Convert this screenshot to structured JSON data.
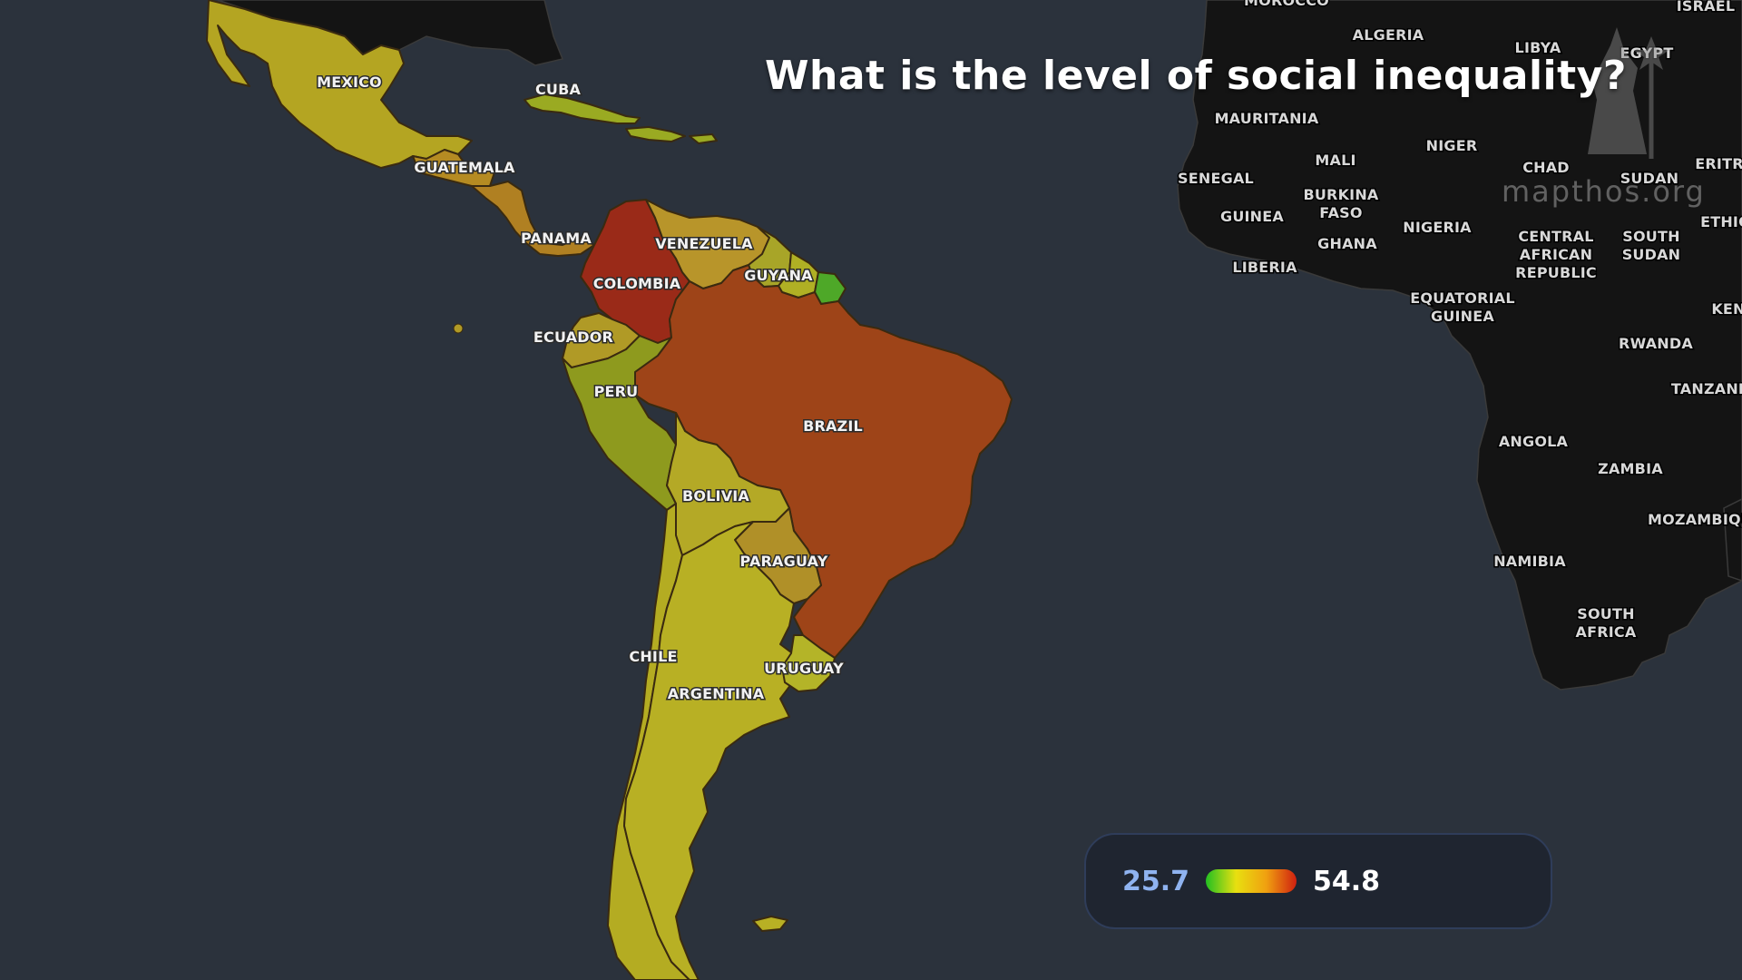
{
  "title": "What is the level of social inequality?",
  "watermark": "mapthos.org",
  "legend": {
    "min": "25.7",
    "max": "54.8"
  },
  "colors": {
    "ocean": "#2b323c",
    "mexico": "#b4a522",
    "guatemala": "#b58b22",
    "central_america": "#b08022",
    "cuba": "#9aaa22",
    "colombia": "#9a2a18",
    "venezuela": "#b8952a",
    "guyana": "#a8a528",
    "suriname": "#b0b024",
    "french_guiana": "#4ea828",
    "ecuador": "#b09a26",
    "peru": "#8e9a1e",
    "brazil": "#9e4418",
    "bolivia": "#b4a926",
    "paraguay": "#b09028",
    "chile": "#b4ac22",
    "argentina": "#b8b024",
    "uruguay": "#b4b428",
    "africa": "#141414"
  },
  "labels": {
    "americas": [
      "MEXICO",
      "CUBA",
      "GUATEMALA",
      "PANAMA",
      "VENEZUELA",
      "COLOMBIA",
      "GUYANA",
      "ECUADOR",
      "PERU",
      "BRAZIL",
      "BOLIVIA",
      "PARAGUAY",
      "CHILE",
      "URUGUAY",
      "ARGENTINA"
    ],
    "africa": [
      "MOROCCO",
      "ALGERIA",
      "LIBYA",
      "EGYPT",
      "ISRAEL",
      "MAURITANIA",
      "MALI",
      "NIGER",
      "CHAD",
      "SUDAN",
      "ERITR",
      "SENEGAL",
      "BURKINA",
      "FASO",
      "GUINEA",
      "GHANA",
      "NIGERIA",
      "CENTRAL",
      "AFRICAN",
      "REPUBLIC",
      "SOUTH",
      "SUDAN",
      "ETHIO",
      "LIBERIA",
      "EQUATORIAL",
      "GUINEA",
      "KEN",
      "RWANDA",
      "TANZANI",
      "ANGOLA",
      "ZAMBIA",
      "MOZAMBIQU",
      "NAMIBIA",
      "SOUTH",
      "AFRICA"
    ]
  }
}
